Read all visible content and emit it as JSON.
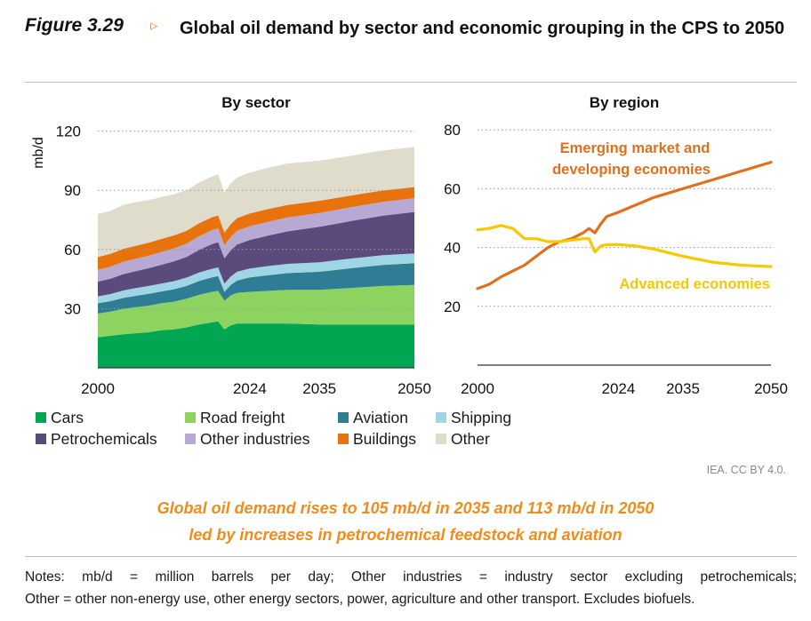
{
  "figure": {
    "label": "Figure 3.29",
    "arrow": "▹",
    "title": "Global oil demand by sector and economic grouping in the CPS to 2050"
  },
  "chart_data": [
    {
      "type": "area",
      "stacked": true,
      "title": "By sector",
      "ylabel": "mb/d",
      "xlabel": "",
      "ylim": [
        0,
        120
      ],
      "yticks": [
        30,
        60,
        90,
        120
      ],
      "xticks": [
        2000,
        2024,
        2035,
        2050
      ],
      "grid": true,
      "x": [
        2000,
        2002,
        2004,
        2006,
        2008,
        2010,
        2012,
        2014,
        2016,
        2018,
        2019,
        2020,
        2021,
        2022,
        2024,
        2027,
        2030,
        2035,
        2040,
        2045,
        2050
      ],
      "series": [
        {
          "name": "Cars",
          "color": "#00a651",
          "values": [
            15.5,
            16.2,
            17.0,
            17.5,
            18.0,
            19.0,
            19.5,
            20.5,
            22.0,
            23.0,
            23.5,
            19.5,
            21.5,
            22.5,
            22.5,
            22.5,
            22.5,
            22.0,
            22.0,
            22.0,
            22.0
          ]
        },
        {
          "name": "Road freight",
          "color": "#8dd35f",
          "values": [
            12.0,
            12.3,
            12.8,
            13.2,
            13.5,
            13.7,
            14.0,
            14.5,
            15.0,
            15.5,
            15.5,
            14.5,
            15.2,
            15.5,
            16.0,
            16.5,
            17.0,
            17.5,
            18.5,
            19.5,
            20.0
          ]
        },
        {
          "name": "Aviation",
          "color": "#2e7d95",
          "values": [
            5.2,
            5.3,
            5.6,
            5.8,
            6.0,
            6.0,
            6.3,
            6.5,
            7.0,
            7.3,
            7.5,
            4.5,
            5.3,
            6.3,
            7.3,
            8.0,
            8.5,
            9.2,
            10.0,
            10.6,
            11.0
          ]
        },
        {
          "name": "Shipping",
          "color": "#9fd6e6",
          "values": [
            3.5,
            3.6,
            3.8,
            3.9,
            4.0,
            4.0,
            4.1,
            4.2,
            4.3,
            4.4,
            4.4,
            4.2,
            4.3,
            4.4,
            4.5,
            4.6,
            4.7,
            4.8,
            4.9,
            5.0,
            5.0
          ]
        },
        {
          "name": "Petrochemicals",
          "color": "#5b4a7c",
          "values": [
            7.5,
            7.8,
            8.3,
            8.6,
            9.0,
            9.5,
            10.0,
            10.5,
            11.5,
            12.5,
            12.8,
            12.8,
            13.3,
            13.8,
            14.5,
            15.5,
            16.5,
            18.0,
            19.0,
            20.0,
            21.0
          ]
        },
        {
          "name": "Other industries",
          "color": "#b8a9d4",
          "values": [
            6.0,
            6.1,
            6.2,
            6.3,
            6.3,
            6.5,
            6.6,
            6.7,
            6.9,
            7.0,
            7.0,
            6.7,
            6.8,
            6.9,
            7.0,
            7.0,
            7.0,
            7.0,
            7.0,
            7.0,
            7.0
          ]
        },
        {
          "name": "Buildings",
          "color": "#e8730c",
          "values": [
            6.5,
            6.5,
            6.6,
            6.6,
            6.6,
            6.6,
            6.6,
            6.6,
            6.6,
            6.6,
            6.6,
            6.4,
            6.5,
            6.5,
            6.5,
            6.5,
            6.4,
            6.2,
            6.0,
            5.8,
            5.6
          ]
        },
        {
          "name": "Other",
          "color": "#e0dccb",
          "values": [
            21.8,
            21.7,
            22.2,
            22.1,
            21.6,
            21.2,
            20.9,
            20.5,
            20.7,
            20.7,
            20.7,
            20.4,
            20.6,
            20.6,
            20.7,
            20.9,
            21.0,
            20.3,
            20.1,
            20.3,
            20.4
          ]
        }
      ]
    },
    {
      "type": "line",
      "title": "By region",
      "xlabel": "",
      "ylabel": "",
      "ylim": [
        0,
        80
      ],
      "yticks": [
        20,
        40,
        60,
        80
      ],
      "xticks": [
        2000,
        2024,
        2035,
        2050
      ],
      "grid": true,
      "series": [
        {
          "name": "Emerging market and developing economies",
          "color": "#e0701e",
          "x": [
            2000,
            2002,
            2004,
            2006,
            2008,
            2010,
            2012,
            2014,
            2016,
            2018,
            2019,
            2020,
            2021,
            2022,
            2024,
            2027,
            2030,
            2035,
            2040,
            2045,
            2050
          ],
          "values": [
            26,
            27.5,
            30,
            32,
            34,
            37,
            40,
            42,
            43,
            45,
            46.5,
            45,
            48,
            50.5,
            52,
            54.5,
            57,
            60,
            63,
            66,
            69
          ]
        },
        {
          "name": "Advanced economies",
          "color": "#f7c800",
          "x": [
            2000,
            2002,
            2004,
            2006,
            2008,
            2010,
            2012,
            2014,
            2016,
            2018,
            2019,
            2020,
            2021,
            2022,
            2024,
            2027,
            2030,
            2035,
            2040,
            2045,
            2050
          ],
          "values": [
            46,
            46.5,
            47.5,
            46.5,
            43,
            43,
            42,
            42,
            42.5,
            43,
            43,
            38.5,
            40.5,
            41,
            41,
            40.5,
            39.5,
            37,
            35,
            34,
            33.5
          ]
        }
      ]
    }
  ],
  "legend": [
    "Cars",
    "Road freight",
    "Aviation",
    "Shipping",
    "Petrochemicals",
    "Other industries",
    "Buildings",
    "Other"
  ],
  "credit": "IEA. CC BY 4.0.",
  "headline": {
    "line1": "Global oil demand rises to 105 mb/d in 2035 and 113 mb/d in 2050",
    "line2": "led by increases in petrochemical feedstock and aviation"
  },
  "notes": {
    "line1": "Notes: mb/d = million barrels per day; Other industries = industry sector excluding petrochemicals;",
    "line2": "Other = other non-energy use, other energy sectors, power, agriculture and other transport. Excludes biofuels."
  }
}
